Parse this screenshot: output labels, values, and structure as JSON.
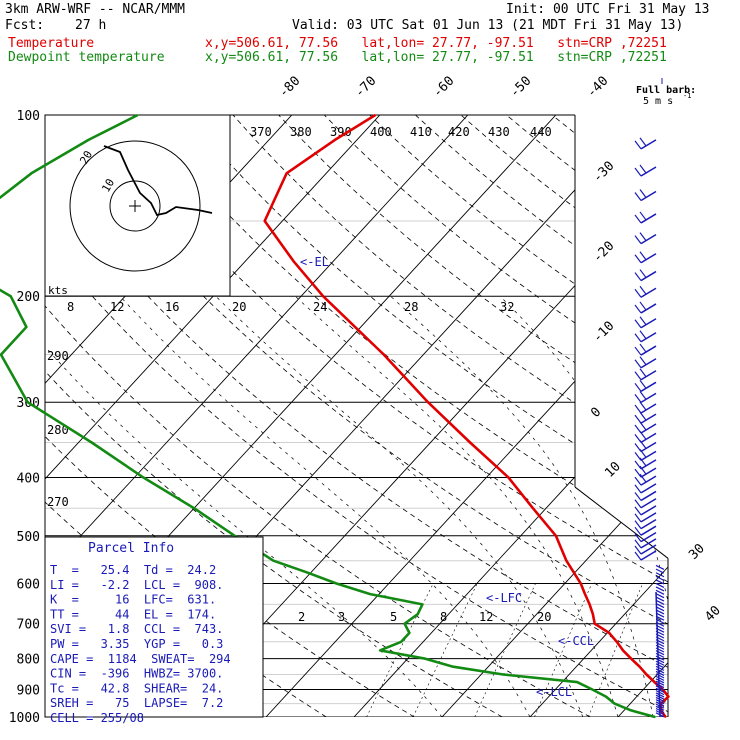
{
  "header": {
    "model": "3km ARW-WRF -- NCAR/MMM",
    "init": "Init: 00 UTC Fri 31 May 13",
    "fcst_label": "Fcst:",
    "fcst_value": "27 h",
    "valid": "Valid: 03 UTC Sat 01 Jun 13 (21 MDT Fri 31 May 13)",
    "temp_label": "Temperature",
    "temp_info": "x,y=506.61, 77.56   lat,lon= 27.77, -97.51   stn=CRP ,72251",
    "dew_label": "Dewpoint temperature",
    "dew_info": "x,y=506.61, 77.56   lat,lon= 27.77, -97.51   stn=CRP ,72251"
  },
  "colors": {
    "temperature": "#e00000",
    "dewpoint": "#138a13",
    "barbs": "#1a1ab8",
    "text_blue": "#1a1ab8"
  },
  "parcel_info": {
    "title": "Parcel Info",
    "rows": [
      "T  =   25.4  Td =  24.2",
      "LI =   -2.2  LCL =  908.",
      "K  =     16  LFC=  631.",
      "TT =     44  EL =  174.",
      "SVI =   1.8  CCL =  743.",
      "PW =   3.35  YGP =   0.3",
      "CAPE =  1184  SWEAT=  294",
      "CIN =  -396  HWBZ= 3700.",
      "Tc =   42.8  SHEAR=  24.",
      "SREH =   75  LAPSE=  7.2",
      "CELL = 255/08"
    ]
  },
  "barb_legend": {
    "line1": "Full barb:",
    "line2": "5 m s",
    "sup": "-1"
  },
  "levels": {
    "el": "<-EL",
    "lfc": "<-LFC",
    "ccl": "<-CCL",
    "lcl": "<-LCL"
  },
  "hodograph": {
    "units": "kts",
    "ring_labels": [
      "10",
      "20"
    ]
  },
  "chart_data": {
    "type": "line",
    "title": "",
    "ylabel": "",
    "xlabel": "",
    "pressure_ticks": [
      "100",
      "200",
      "300",
      "400",
      "500",
      "600",
      "700",
      "800",
      "900",
      "1000"
    ],
    "pressure_levels": [
      100,
      200,
      300,
      400,
      500,
      600,
      700,
      800,
      900,
      1000
    ],
    "temperature_tick_labels": [
      "-80",
      "-70",
      "-60",
      "-50",
      "-40",
      "-30",
      "-20",
      "-10",
      "0",
      "10",
      "20",
      "30",
      "40"
    ],
    "isotherms": [
      -80,
      -70,
      -60,
      -50,
      -40,
      -30,
      -20,
      -10,
      0,
      10,
      20,
      30,
      40
    ],
    "theta_e_labels": [
      "370",
      "380",
      "390",
      "400",
      "410",
      "420",
      "430",
      "440"
    ],
    "mixing_ratio_labels_upper": [
      "8",
      "12",
      "16",
      "20",
      "24",
      "28",
      "32"
    ],
    "mixing_ratio_labels_lower": [
      "2",
      "3",
      "5",
      "8",
      "12",
      "20"
    ],
    "theta_labels": [
      "290",
      "280",
      "270"
    ],
    "series": [
      {
        "name": "Temperature",
        "pressure": [
          1000,
          975,
          950,
          925,
          900,
          875,
          850,
          825,
          800,
          775,
          750,
          725,
          700,
          675,
          650,
          625,
          600,
          550,
          500,
          450,
          400,
          350,
          300,
          250,
          200,
          175,
          150,
          125,
          110,
          100
        ],
        "values": [
          25.4,
          24.2,
          23.5,
          23.6,
          22.2,
          20.5,
          18.8,
          17.2,
          15.4,
          13.6,
          12.0,
          10.2,
          7.6,
          6.4,
          5.0,
          3.4,
          1.8,
          -2.2,
          -6.0,
          -11.5,
          -17.5,
          -25.5,
          -34.5,
          -44.5,
          -57.5,
          -64.5,
          -72.0,
          -74.5,
          -72.5,
          -70.5
        ]
      },
      {
        "name": "Dewpoint temperature",
        "pressure": [
          1000,
          975,
          950,
          925,
          900,
          875,
          850,
          825,
          800,
          775,
          750,
          725,
          700,
          675,
          650,
          625,
          600,
          575,
          550,
          500,
          450,
          400,
          350,
          300,
          250,
          225,
          200,
          175,
          150,
          125,
          110,
          100
        ],
        "values": [
          24.2,
          20.8,
          18.2,
          16.5,
          14.2,
          11.7,
          2.5,
          -4.0,
          -8.0,
          -14.0,
          -12.5,
          -12.5,
          -14.0,
          -13.5,
          -14.0,
          -21.0,
          -26.0,
          -30.5,
          -35.5,
          -42.5,
          -50.0,
          -59.0,
          -68.5,
          -80.0,
          -88.0,
          -88.0,
          -93.0,
          -103.5,
          -105.5,
          -103.5,
          -100.5,
          -97.5
        ]
      }
    ]
  }
}
